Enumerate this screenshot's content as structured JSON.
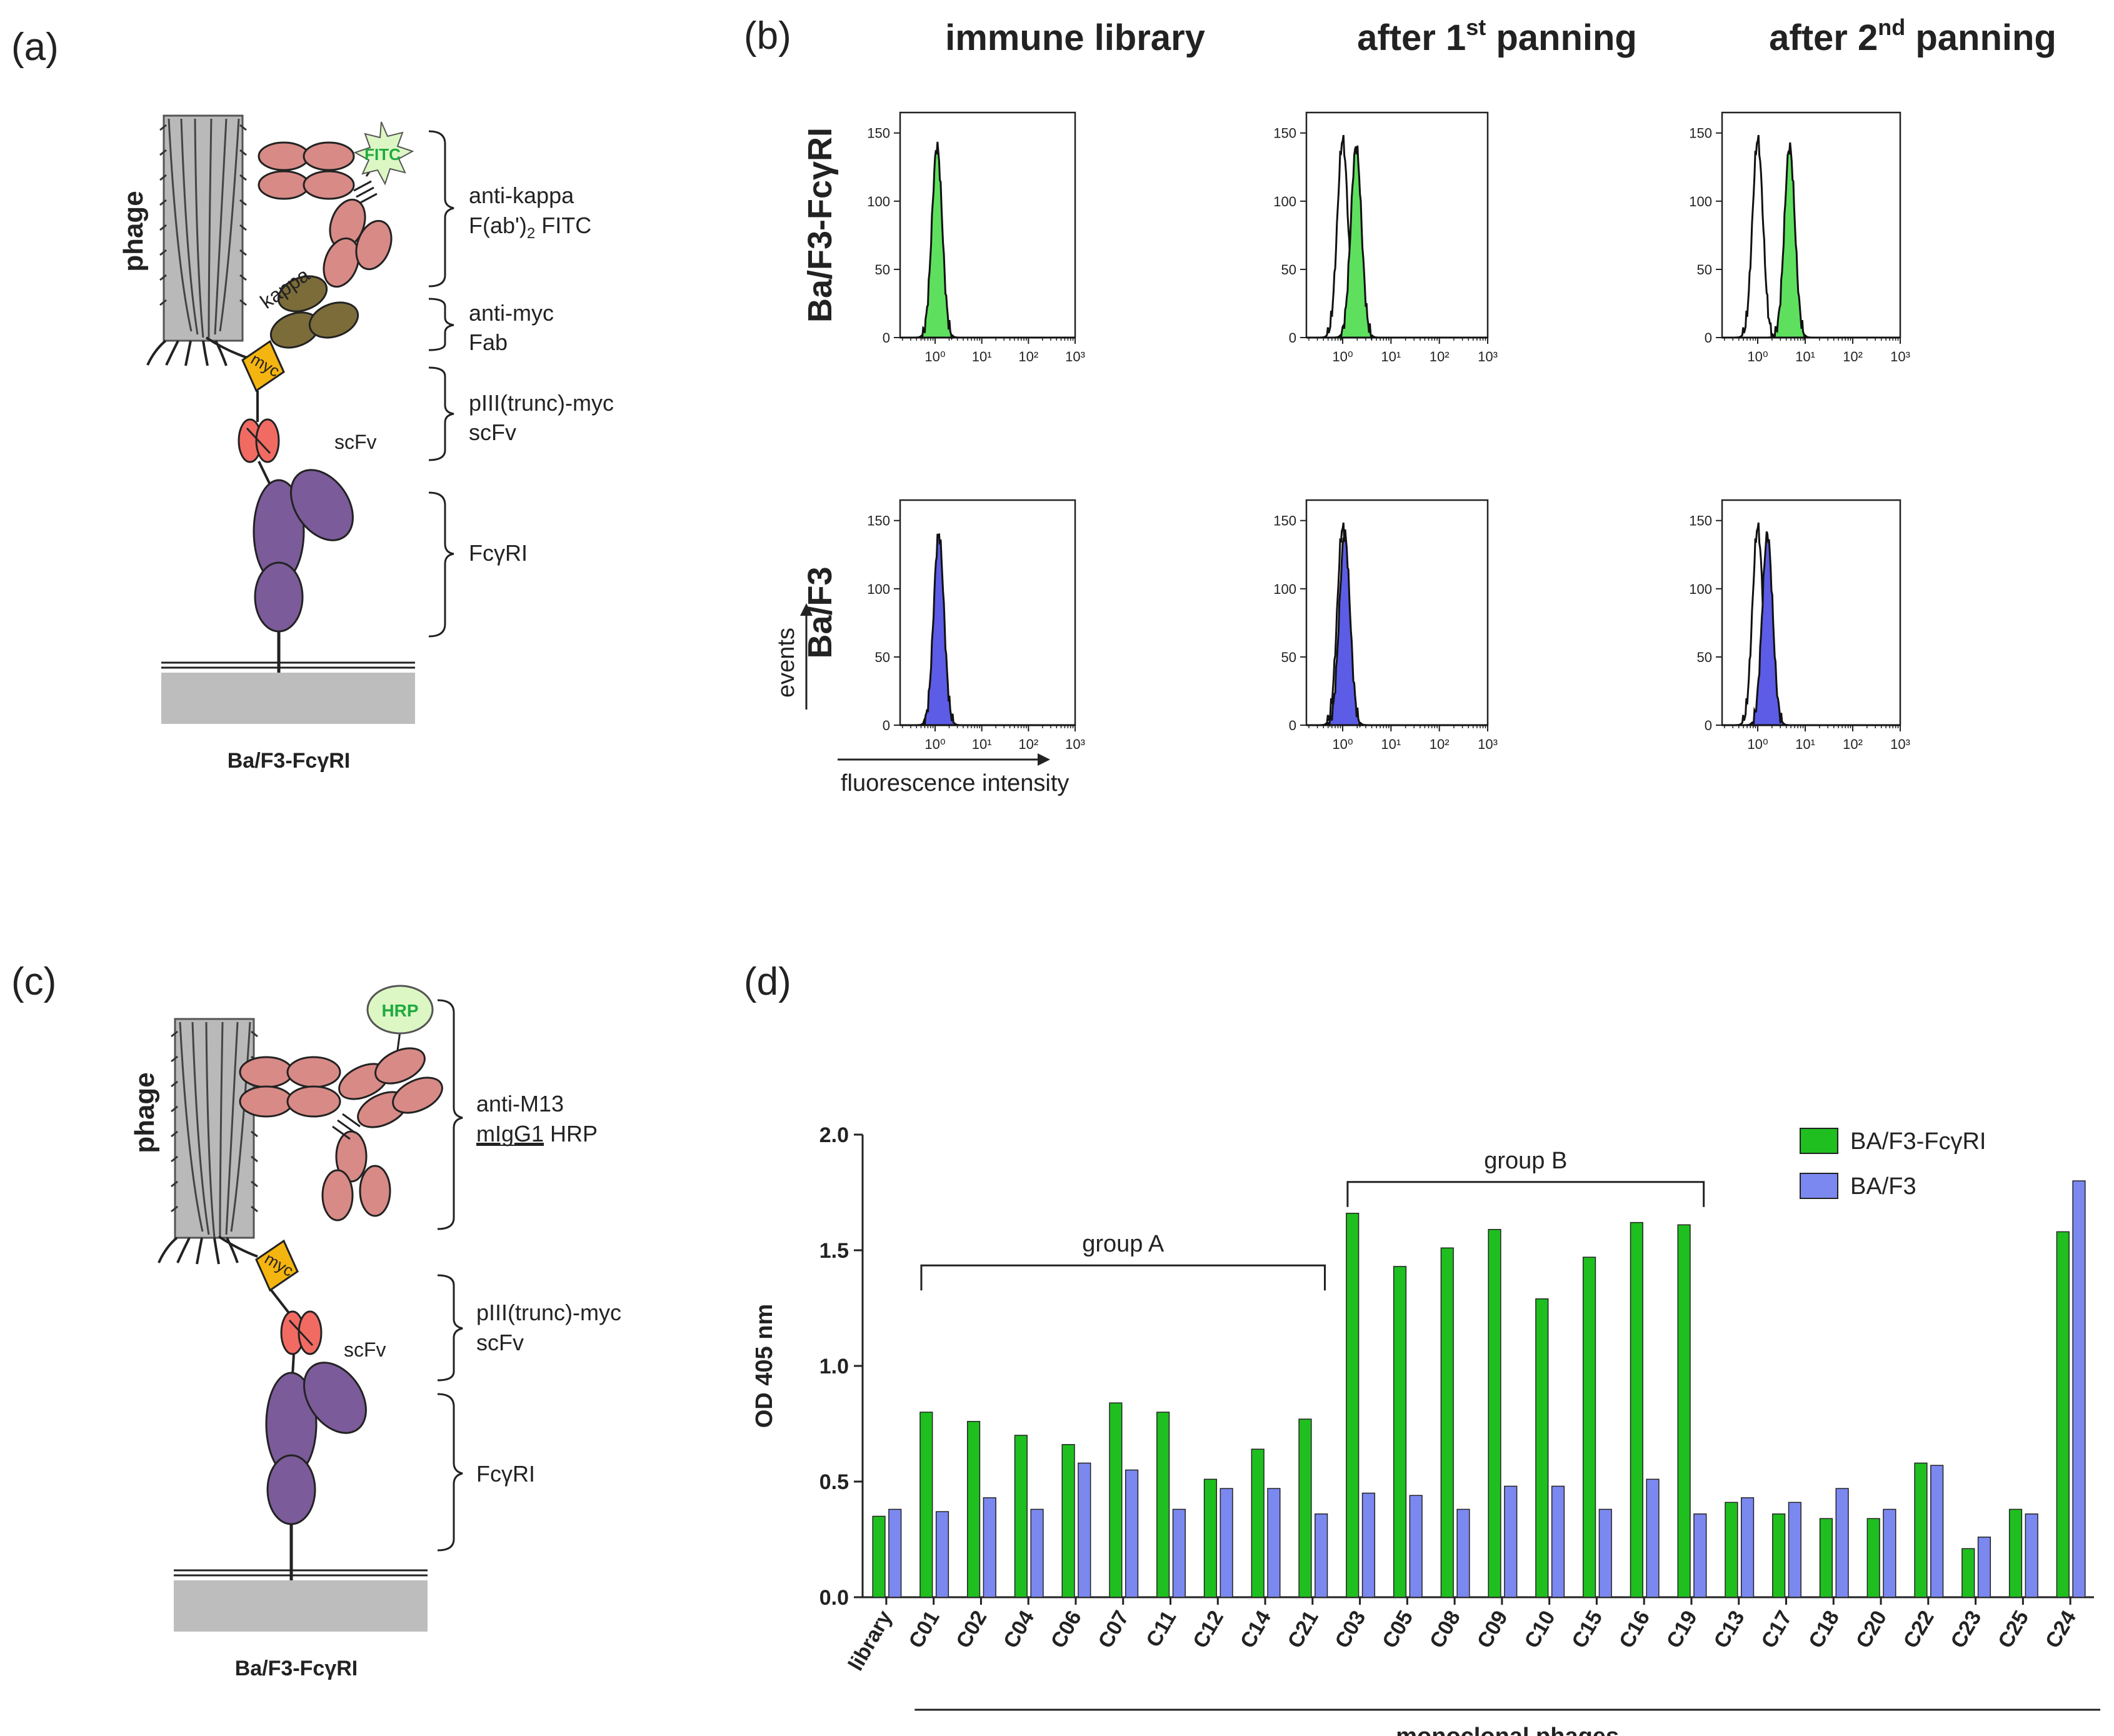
{
  "panels": {
    "a": "(a)",
    "b": "(b)",
    "c": "(c)",
    "d": "(d)"
  },
  "schema_a": {
    "phage_label": "phage",
    "kappa_label": "kappa",
    "fitc_label": "FITC",
    "myc_label": "myc",
    "scfv_label": "scFv",
    "cell_label": "Ba/F3-FcγRI",
    "brackets": {
      "b1_line1": "anti-kappa",
      "b1_line2_pre": "F(ab')",
      "b1_line2_sub": "2",
      "b1_line2_post": " FITC",
      "b2_line1": "anti-myc",
      "b2_line2": "Fab",
      "b3_line1": "pIII(trunc)-myc",
      "b3_line2": "scFv",
      "b4_line1": "FcγRI"
    }
  },
  "schema_c": {
    "phage_label": "phage",
    "hrp_label": "HRP",
    "myc_label": "myc",
    "scfv_label": "scFv",
    "cell_label": "Ba/F3-FcγRI",
    "brackets": {
      "b1_line1": "anti-M13",
      "b1_line2_u": "mIgG1",
      "b1_line2_post": " HRP",
      "b2_line1": "pIII(trunc)-myc",
      "b2_line2": "scFv",
      "b3_line1": "FcγRI"
    }
  },
  "facs": {
    "columns": [
      {
        "pre": "immune library",
        "sup": "",
        "post": ""
      },
      {
        "pre": "after 1",
        "sup": "st",
        "post": " panning"
      },
      {
        "pre": "after 2",
        "sup": "nd",
        "post": " panning"
      }
    ],
    "rows": [
      "Ba/F3-FcγRI",
      "Ba/F3"
    ],
    "y_ticks": [
      "0",
      "50",
      "100",
      "150"
    ],
    "x_ticks": [
      "10⁰",
      "10¹",
      "10²",
      "10³"
    ],
    "events_label": "events",
    "fluor_label": "fluorescence intensity",
    "fill_colors": [
      "#5ee05e",
      "#5c5ce6"
    ],
    "peaks": [
      [
        {
          "open": null,
          "filled": 1.1
        },
        {
          "open": 1.0,
          "filled": 1.9
        },
        {
          "open": 1.0,
          "filled": 4.7
        }
      ],
      [
        {
          "open": null,
          "filled": 1.2
        },
        {
          "open": 1.0,
          "filled": 1.1
        },
        {
          "open": 1.0,
          "filled": 1.6
        }
      ]
    ]
  },
  "chart_data": {
    "type": "bar",
    "ylabel": "OD 405 nm",
    "xlabel": "monoclonal phages",
    "ylim": [
      0,
      2.0
    ],
    "y_ticks": [
      "0.0",
      "0.5",
      "1.0",
      "1.5",
      "2.0"
    ],
    "categories": [
      "library",
      "C01",
      "C02",
      "C04",
      "C06",
      "C07",
      "C11",
      "C12",
      "C14",
      "C21",
      "C03",
      "C05",
      "C08",
      "C09",
      "C10",
      "C15",
      "C16",
      "C19",
      "C13",
      "C17",
      "C18",
      "C20",
      "C22",
      "C23",
      "C25",
      "C24"
    ],
    "series": [
      {
        "name": "BA/F3-FcγRI",
        "color": "#1fbf1f",
        "values": [
          0.35,
          0.8,
          0.76,
          0.7,
          0.66,
          0.84,
          0.8,
          0.51,
          0.64,
          0.77,
          1.66,
          1.43,
          1.51,
          1.59,
          1.29,
          1.47,
          1.62,
          1.61,
          0.41,
          0.36,
          0.34,
          0.34,
          0.58,
          0.21,
          0.38,
          1.58
        ]
      },
      {
        "name": "BA/F3",
        "color": "#7b88f0",
        "values": [
          0.38,
          0.37,
          0.43,
          0.38,
          0.58,
          0.55,
          0.38,
          0.47,
          0.47,
          0.36,
          0.45,
          0.44,
          0.38,
          0.48,
          0.48,
          0.38,
          0.51,
          0.36,
          0.43,
          0.41,
          0.47,
          0.38,
          0.57,
          0.26,
          0.36,
          1.8
        ]
      }
    ],
    "groups": [
      {
        "label": "group A",
        "from": "C01",
        "to": "C21"
      },
      {
        "label": "group B",
        "from": "C03",
        "to": "C19"
      }
    ],
    "legend_position": "top-right"
  }
}
